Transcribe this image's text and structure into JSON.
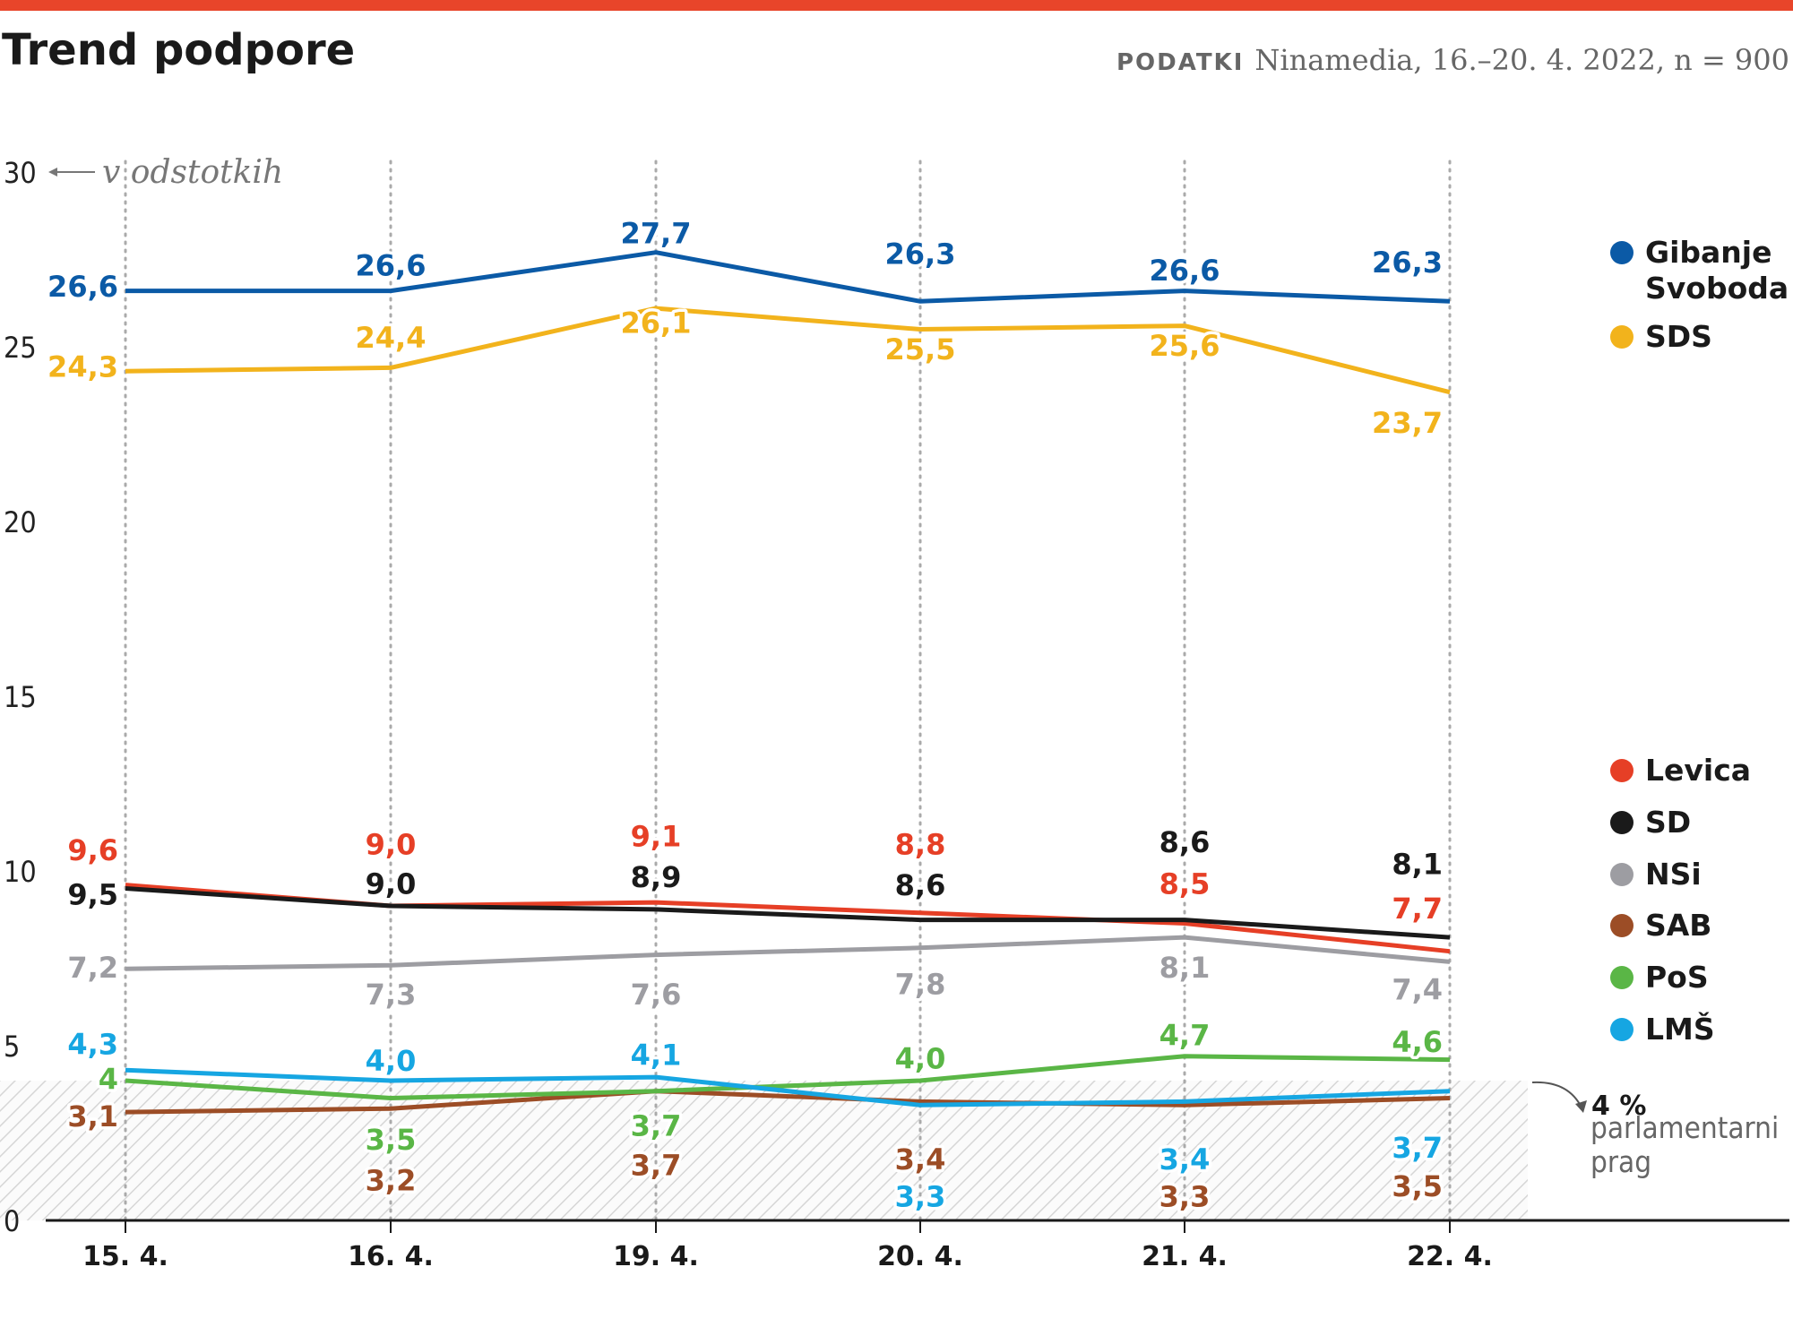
{
  "chart_data": {
    "type": "line",
    "title": "Trend podpore",
    "source_label": "PODATKI",
    "source": "Ninamedia, 16.–20. 4. 2022, n = 900",
    "y_unit_note": "v odstotkih",
    "categories": [
      "15. 4.",
      "16. 4.",
      "19. 4.",
      "20. 4.",
      "21. 4.",
      "22. 4."
    ],
    "ylim": [
      0,
      30
    ],
    "yticks": [
      0,
      5,
      10,
      15,
      20,
      25,
      30
    ],
    "threshold": {
      "value": 4,
      "label": "4 %",
      "text": "parlamentarni prag"
    },
    "series": [
      {
        "name": "Gibanje Svoboda",
        "color": "#0b5aa6",
        "values": [
          26.6,
          26.6,
          27.7,
          26.3,
          26.6,
          26.3
        ],
        "value_labels": [
          "26,6",
          "26,6",
          "27,7",
          "26,3",
          "26,6",
          "26,3"
        ]
      },
      {
        "name": "SDS",
        "color": "#f2b31c",
        "values": [
          24.3,
          24.4,
          26.1,
          25.5,
          25.6,
          23.7
        ],
        "value_labels": [
          "24,3",
          "24,4",
          "26,1",
          "25,5",
          "25,6",
          "23,7"
        ]
      },
      {
        "name": "Levica",
        "color": "#e63f26",
        "values": [
          9.6,
          9.0,
          9.1,
          8.8,
          8.5,
          7.7
        ],
        "value_labels": [
          "9,6",
          "9,0",
          "9,1",
          "8,8",
          "8,5",
          "7,7"
        ]
      },
      {
        "name": "SD",
        "color": "#1a1a1a",
        "values": [
          9.5,
          9.0,
          8.9,
          8.6,
          8.6,
          8.1
        ],
        "value_labels": [
          "9,5",
          "9,0",
          "8,9",
          "8,6",
          "8,6",
          "8,1"
        ]
      },
      {
        "name": "NSi",
        "color": "#9d9da2",
        "values": [
          7.2,
          7.3,
          7.6,
          7.8,
          8.1,
          7.4
        ],
        "value_labels": [
          "7,2",
          "7,3",
          "7,6",
          "7,8",
          "8,1",
          "7,4"
        ]
      },
      {
        "name": "SAB",
        "color": "#9c4d26",
        "values": [
          3.1,
          3.2,
          3.7,
          3.4,
          3.3,
          3.5
        ],
        "value_labels": [
          "3,1",
          "3,2",
          "3,7",
          "3,4",
          "3,3",
          "3,5"
        ]
      },
      {
        "name": "PoS",
        "color": "#5ab646",
        "values": [
          4,
          3.5,
          3.7,
          4.0,
          4.7,
          4.6
        ],
        "value_labels": [
          "4",
          "3,5",
          "3,7",
          "4,0",
          "4,7",
          "4,6"
        ]
      },
      {
        "name": "LMŠ",
        "color": "#16a6e2",
        "values": [
          4.3,
          4.0,
          4.1,
          3.3,
          3.4,
          3.7
        ],
        "value_labels": [
          "4,3",
          "4,0",
          "4,1",
          "3,3",
          "3,4",
          "3,7"
        ]
      }
    ]
  }
}
